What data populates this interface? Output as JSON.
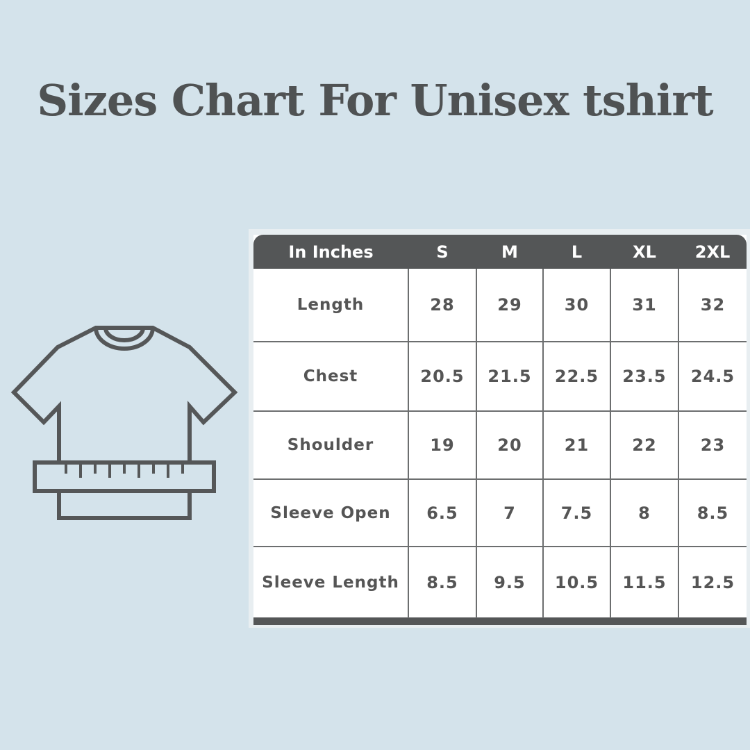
{
  "title": "Sizes Chart For Unisex tshirt",
  "icon": "tshirt-with-measuring-tape-icon",
  "colors": {
    "background": "#d4e3eb",
    "header": "#545657",
    "text": "#4f5253"
  },
  "chart_data": {
    "type": "table",
    "title": "Sizes Chart For Unisex tshirt",
    "header": [
      "In Inches",
      "S",
      "M",
      "L",
      "XL",
      "2XL"
    ],
    "rows": [
      {
        "label": "Length",
        "values": [
          "28",
          "29",
          "30",
          "31",
          "32"
        ]
      },
      {
        "label": "Chest",
        "values": [
          "20.5",
          "21.5",
          "22.5",
          "23.5",
          "24.5"
        ]
      },
      {
        "label": "Shoulder",
        "values": [
          "19",
          "20",
          "21",
          "22",
          "23"
        ]
      },
      {
        "label": "Sleeve Open",
        "values": [
          "6.5",
          "7",
          "7.5",
          "8",
          "8.5"
        ]
      },
      {
        "label": "Sleeve Length",
        "values": [
          "8.5",
          "9.5",
          "10.5",
          "11.5",
          "12.5"
        ]
      }
    ]
  }
}
